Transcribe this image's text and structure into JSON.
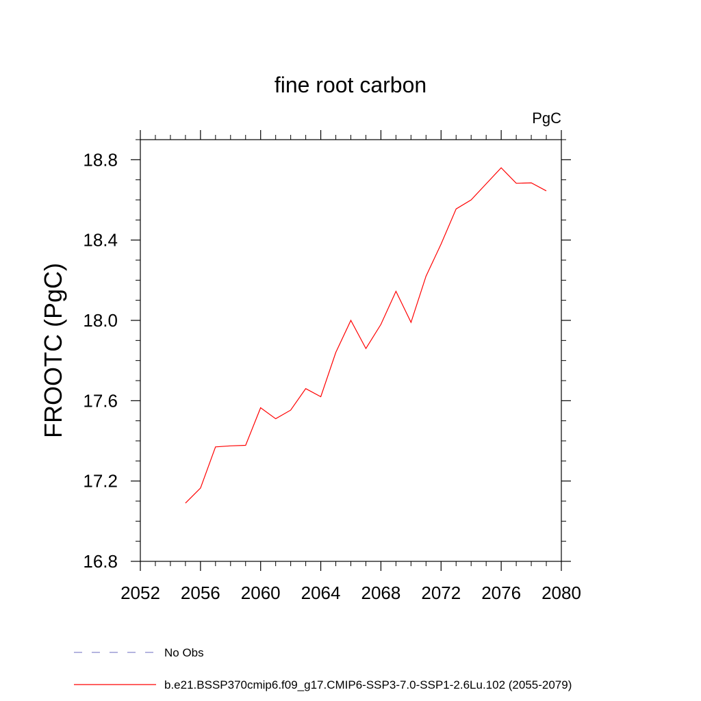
{
  "chart_data": {
    "type": "line",
    "title": "fine root carbon",
    "units": "PgC",
    "ylabel": "FROOTC  (PgC)",
    "xlabel": "",
    "xlim": [
      2052,
      2080
    ],
    "ylim": [
      16.8,
      18.9
    ],
    "x_ticks": [
      2052,
      2056,
      2060,
      2064,
      2068,
      2072,
      2076,
      2080
    ],
    "x_tick_labels": [
      "2052",
      "2056",
      "2060",
      "2064",
      "2068",
      "2072",
      "2076",
      "2080"
    ],
    "y_ticks": [
      16.8,
      17.2,
      17.6,
      18.0,
      18.4,
      18.8
    ],
    "y_tick_labels": [
      "16.8",
      "17.2",
      "17.6",
      "18.0",
      "18.4",
      "18.8"
    ],
    "grid": false,
    "legend_position": "bottom",
    "series": [
      {
        "name": "b.e21.BSSP370cmip6.f09_g17.CMIP6-SSP3-7.0-SSP1-2.6Lu.102 (2055-2079)",
        "color": "#ff0000",
        "style": "solid",
        "x": [
          2055,
          2056,
          2057,
          2058,
          2059,
          2060,
          2061,
          2062,
          2063,
          2064,
          2065,
          2066,
          2067,
          2068,
          2069,
          2070,
          2071,
          2072,
          2073,
          2074,
          2075,
          2076,
          2077,
          2078,
          2079
        ],
        "values": [
          17.09,
          17.165,
          17.37,
          17.375,
          17.378,
          17.565,
          17.51,
          17.553,
          17.66,
          17.62,
          17.84,
          18.0,
          17.86,
          17.98,
          18.145,
          17.99,
          18.22,
          18.38,
          18.555,
          18.6,
          18.68,
          18.76,
          18.683,
          18.685,
          18.645
        ]
      }
    ],
    "legend": [
      {
        "label": "No Obs",
        "color": "#8888cc",
        "style": "dashed"
      },
      {
        "label": "b.e21.BSSP370cmip6.f09_g17.CMIP6-SSP3-7.0-SSP1-2.6Lu.102 (2055-2079)",
        "color": "#ff0000",
        "style": "solid"
      }
    ]
  }
}
